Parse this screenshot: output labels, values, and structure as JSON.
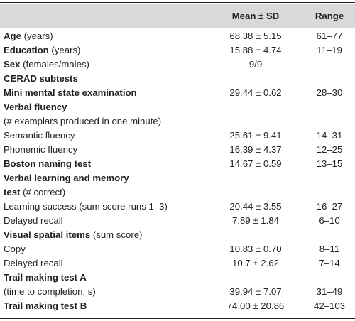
{
  "header": {
    "mean_sd": "Mean ± SD",
    "range": "Range"
  },
  "rows": [
    {
      "bold": "Age",
      "normal": " (years)",
      "mean": "68.38 ± 5.15",
      "range": "61–77"
    },
    {
      "bold": "Education",
      "normal": " (years)",
      "mean": "15.88 ± 4.74",
      "range": "11–19"
    },
    {
      "bold": "Sex",
      "normal": " (females/males)",
      "mean": "9/9",
      "range": ""
    },
    {
      "bold": "CERAD subtests",
      "normal": "",
      "mean": "",
      "range": ""
    },
    {
      "bold": "Mini mental state examination",
      "normal": "",
      "mean": "29.44 ± 0.62",
      "range": "28–30"
    },
    {
      "bold": "Verbal fluency",
      "normal": "",
      "mean": "",
      "range": ""
    },
    {
      "bold": "",
      "normal": "(# examplars produced in one minute)",
      "mean": "",
      "range": ""
    },
    {
      "bold": "",
      "normal": "Semantic fluency",
      "mean": "25.61 ± 9.41",
      "range": "14–31"
    },
    {
      "bold": "",
      "normal": "Phonemic fluency",
      "mean": "16.39 ± 4.37",
      "range": "12–25"
    },
    {
      "bold": "Boston naming test",
      "normal": "",
      "mean": "14.67 ± 0.59",
      "range": "13–15"
    },
    {
      "bold": "Verbal learning and memory",
      "normal": "",
      "mean": "",
      "range": ""
    },
    {
      "bold": "  test",
      "normal": " (# correct)",
      "mean": "",
      "range": ""
    },
    {
      "bold": "",
      "normal": "Learning success (sum score runs 1–3)",
      "mean": "20.44 ± 3.55",
      "range": "16–27"
    },
    {
      "bold": "",
      "normal": "Delayed recall",
      "mean": "7.89 ± 1.84",
      "range": "6–10"
    },
    {
      "bold": "Visual spatial items",
      "normal": " (sum score)",
      "mean": "",
      "range": ""
    },
    {
      "bold": "",
      "normal": "Copy",
      "mean": "10.83 ± 0.70",
      "range": "8–11"
    },
    {
      "bold": "",
      "normal": "Delayed recall",
      "mean": "10.7 ± 2.62",
      "range": "7–14"
    },
    {
      "bold": "Trail making test A",
      "normal": "",
      "mean": "",
      "range": ""
    },
    {
      "bold": "",
      "normal": "(time to completion, s)",
      "mean": "39.94 ± 7.07",
      "range": "31–49"
    },
    {
      "bold": "Trail making test B",
      "normal": "",
      "mean": "74.00 ± 20.86",
      "range": "42–103"
    }
  ]
}
